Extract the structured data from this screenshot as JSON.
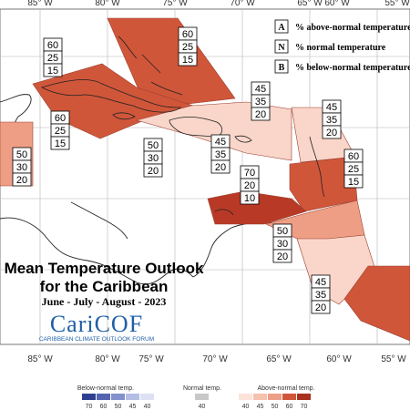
{
  "title_line1": "Mean Temperature Outlook",
  "title_line2": "for the Caribbean",
  "subtitle": "June - July - August - 2023",
  "logo": {
    "name": "CariCOF",
    "tagline": "CARIBBEAN CLIMATE OUTLOOK FORUM"
  },
  "longitudes_top": [
    "85° W",
    "80° W",
    "75° W",
    "70° W",
    "65° W",
    "60° W",
    "55° W"
  ],
  "longitudes_bottom": [
    "85° W",
    "80° W",
    "75° W",
    "70° W",
    "65° W",
    "60° W",
    "55° W"
  ],
  "key": [
    {
      "letter": "A",
      "text": "% above-normal temperature"
    },
    {
      "letter": "N",
      "text": "% normal temperature"
    },
    {
      "letter": "B",
      "text": "% below-normal temperature"
    }
  ],
  "regions": [
    {
      "id": "cuba-east",
      "probs": [
        "60",
        "25",
        "15"
      ],
      "color": "#d0563a"
    },
    {
      "id": "cuba-west",
      "probs": [
        "60",
        "25",
        "15"
      ],
      "color": "#d0563a"
    },
    {
      "id": "belize",
      "probs": [
        "50",
        "30",
        "20"
      ],
      "color": "#ef9e86"
    },
    {
      "id": "jamaica",
      "probs": [
        "50",
        "30",
        "20"
      ],
      "color": "#ffffff"
    },
    {
      "id": "hispaniola",
      "probs": [
        "45",
        "35",
        "20"
      ],
      "color": "#f9d6c9"
    },
    {
      "id": "hispaniola-south",
      "probs": [
        "45",
        "35",
        "20"
      ],
      "color": "#f9d6c9"
    },
    {
      "id": "leeward",
      "probs": [
        "45",
        "35",
        "20"
      ],
      "color": "#f9d6c9"
    },
    {
      "id": "windward",
      "probs": [
        "60",
        "25",
        "15"
      ],
      "color": "#d0563a"
    },
    {
      "id": "abc-islands",
      "probs": [
        "70",
        "20",
        "10"
      ],
      "color": "#b83a26"
    },
    {
      "id": "venezuela",
      "probs": [
        "50",
        "30",
        "20"
      ],
      "color": "#ef9e86"
    },
    {
      "id": "guyana",
      "probs": [
        "45",
        "35",
        "20"
      ],
      "color": "#f9d6c9"
    }
  ],
  "scale": {
    "below_label": "Below-normal temp.",
    "normal_label": "Normal temp.",
    "above_label": "Above-normal temp.",
    "below": [
      {
        "value": "70",
        "color": "#2f3f8f"
      },
      {
        "value": "60",
        "color": "#5364b0"
      },
      {
        "value": "50",
        "color": "#8390cc"
      },
      {
        "value": "45",
        "color": "#b4bde3"
      },
      {
        "value": "40",
        "color": "#dde1f3"
      }
    ],
    "normal": [
      {
        "value": "40",
        "color": "#c8c8c8"
      }
    ],
    "above": [
      {
        "value": "40",
        "color": "#fbe3da"
      },
      {
        "value": "45",
        "color": "#f6c1ad"
      },
      {
        "value": "50",
        "color": "#ef9e86"
      },
      {
        "value": "60",
        "color": "#d0563a"
      },
      {
        "value": "70",
        "color": "#a8321f"
      }
    ]
  }
}
